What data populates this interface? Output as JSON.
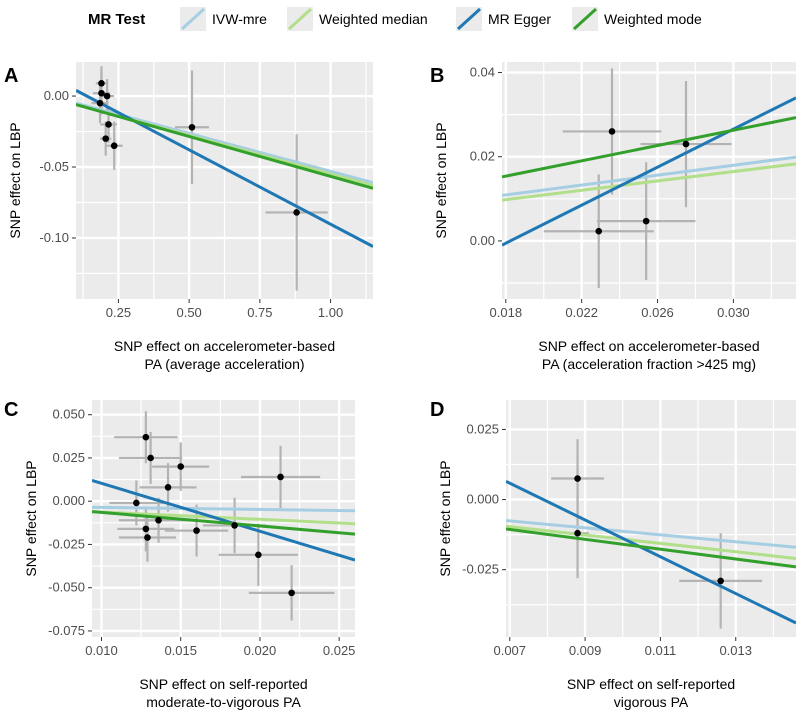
{
  "legend": {
    "title": "MR Test",
    "items": [
      {
        "label": "IVW-mre",
        "color": "#a6cee3"
      },
      {
        "label": "Weighted median",
        "color": "#b2df8a"
      },
      {
        "label": "MR Egger",
        "color": "#1f78b4"
      },
      {
        "label": "Weighted mode",
        "color": "#33a02c"
      }
    ]
  },
  "colors": {
    "panel_bg": "#ebebeb",
    "grid": "#ffffff",
    "errorbar": "#b3b3b3",
    "point": "#000000"
  },
  "chart_data": [
    {
      "panel": "A",
      "type": "scatter",
      "xlabel": [
        "SNP effect on accelerometer-based",
        "PA (average acceleration)"
      ],
      "ylabel": "SNP effect on LBP",
      "xlim": [
        0.1,
        1.15
      ],
      "ylim": [
        -0.143,
        0.024
      ],
      "xticks": [
        0.25,
        0.5,
        0.75,
        1.0
      ],
      "xtick_labels": [
        "0.25",
        "0.50",
        "0.75",
        "1.00"
      ],
      "yticks": [
        0.0,
        -0.05,
        -0.1
      ],
      "ytick_labels": [
        "0.00",
        "-0.05",
        "-0.10"
      ],
      "points": [
        {
          "x": 0.19,
          "y": 0.009,
          "xerr": 0.02,
          "yerr": 0.012
        },
        {
          "x": 0.19,
          "y": 0.002,
          "xerr": 0.03,
          "yerr": 0.015
        },
        {
          "x": 0.185,
          "y": -0.005,
          "xerr": 0.03,
          "yerr": 0.014
        },
        {
          "x": 0.21,
          "y": 0.0,
          "xerr": 0.025,
          "yerr": 0.012
        },
        {
          "x": 0.215,
          "y": -0.02,
          "xerr": 0.03,
          "yerr": 0.013
        },
        {
          "x": 0.205,
          "y": -0.03,
          "xerr": 0.02,
          "yerr": 0.012
        },
        {
          "x": 0.235,
          "y": -0.035,
          "xerr": 0.03,
          "yerr": 0.017
        },
        {
          "x": 0.51,
          "y": -0.022,
          "xerr": 0.06,
          "yerr": 0.04
        },
        {
          "x": 0.88,
          "y": -0.082,
          "xerr": 0.11,
          "yerr": 0.055
        }
      ],
      "lines": [
        {
          "method": "IVW-mre",
          "x": [
            0.1,
            1.15
          ],
          "y": [
            -0.005,
            -0.061
          ]
        },
        {
          "method": "Weighted median",
          "x": [
            0.1,
            1.15
          ],
          "y": [
            -0.006,
            -0.063
          ]
        },
        {
          "method": "MR Egger",
          "x": [
            0.1,
            1.15
          ],
          "y": [
            0.004,
            -0.106
          ]
        },
        {
          "method": "Weighted mode",
          "x": [
            0.1,
            1.15
          ],
          "y": [
            -0.006,
            -0.065
          ]
        }
      ]
    },
    {
      "panel": "B",
      "type": "scatter",
      "xlabel": [
        "SNP effect on accelerometer-based",
        "PA (acceleration fraction >425 mg)"
      ],
      "ylabel": "SNP effect on LBP",
      "xlim": [
        0.0178,
        0.0333
      ],
      "ylim": [
        -0.0138,
        0.0425
      ],
      "xticks": [
        0.018,
        0.022,
        0.026,
        0.03
      ],
      "xtick_labels": [
        "0.018",
        "0.022",
        "0.026",
        "0.030"
      ],
      "yticks": [
        0.04,
        0.02,
        0.0
      ],
      "ytick_labels": [
        "0.04",
        "0.02",
        "0.00"
      ],
      "points": [
        {
          "x": 0.0236,
          "y": 0.026,
          "xerr": 0.0026,
          "yerr": 0.015
        },
        {
          "x": 0.0275,
          "y": 0.023,
          "xerr": 0.0024,
          "yerr": 0.015
        },
        {
          "x": 0.0254,
          "y": 0.0047,
          "xerr": 0.0026,
          "yerr": 0.014
        },
        {
          "x": 0.0229,
          "y": 0.0023,
          "xerr": 0.0029,
          "yerr": 0.0135
        }
      ],
      "lines": [
        {
          "method": "IVW-mre",
          "x": [
            0.0178,
            0.0333
          ],
          "y": [
            0.0108,
            0.0199
          ]
        },
        {
          "method": "Weighted median",
          "x": [
            0.0178,
            0.0333
          ],
          "y": [
            0.0097,
            0.0183
          ]
        },
        {
          "method": "MR Egger",
          "x": [
            0.0178,
            0.0333
          ],
          "y": [
            -0.001,
            0.034
          ]
        },
        {
          "method": "Weighted mode",
          "x": [
            0.0178,
            0.0333
          ],
          "y": [
            0.0152,
            0.0293
          ]
        }
      ]
    },
    {
      "panel": "C",
      "type": "scatter",
      "xlabel": [
        "SNP effect on self-reported",
        "moderate-to-vigorous PA"
      ],
      "ylabel": "SNP effect on LBP",
      "xlim": [
        0.0094,
        0.026
      ],
      "ylim": [
        -0.0785,
        0.0585
      ],
      "xticks": [
        0.01,
        0.015,
        0.02,
        0.025
      ],
      "xtick_labels": [
        "0.010",
        "0.015",
        "0.020",
        "0.025"
      ],
      "yticks": [
        0.05,
        0.025,
        0.0,
        -0.025,
        -0.05,
        -0.075
      ],
      "ytick_labels": [
        "0.050",
        "0.025",
        "0.000",
        "-0.025",
        "-0.050",
        "-0.075"
      ],
      "points": [
        {
          "x": 0.0128,
          "y": 0.037,
          "xerr": 0.002,
          "yerr": 0.015
        },
        {
          "x": 0.0131,
          "y": 0.025,
          "xerr": 0.002,
          "yerr": 0.015
        },
        {
          "x": 0.015,
          "y": 0.02,
          "xerr": 0.0018,
          "yerr": 0.014
        },
        {
          "x": 0.0142,
          "y": 0.008,
          "xerr": 0.0018,
          "yerr": 0.014
        },
        {
          "x": 0.0213,
          "y": 0.014,
          "xerr": 0.0025,
          "yerr": 0.018
        },
        {
          "x": 0.0122,
          "y": -0.001,
          "xerr": 0.0017,
          "yerr": 0.013
        },
        {
          "x": 0.0136,
          "y": -0.011,
          "xerr": 0.0025,
          "yerr": 0.013
        },
        {
          "x": 0.0128,
          "y": -0.016,
          "xerr": 0.0018,
          "yerr": 0.013
        },
        {
          "x": 0.0129,
          "y": -0.021,
          "xerr": 0.0018,
          "yerr": 0.014
        },
        {
          "x": 0.016,
          "y": -0.017,
          "xerr": 0.002,
          "yerr": 0.015
        },
        {
          "x": 0.0184,
          "y": -0.014,
          "xerr": 0.002,
          "yerr": 0.016
        },
        {
          "x": 0.0199,
          "y": -0.031,
          "xerr": 0.0025,
          "yerr": 0.018
        },
        {
          "x": 0.022,
          "y": -0.053,
          "xerr": 0.0027,
          "yerr": 0.016
        }
      ],
      "lines": [
        {
          "method": "IVW-mre",
          "x": [
            0.0094,
            0.026
          ],
          "y": [
            -0.0035,
            -0.0055
          ]
        },
        {
          "method": "Weighted median",
          "x": [
            0.0094,
            0.026
          ],
          "y": [
            -0.006,
            -0.013
          ]
        },
        {
          "method": "MR Egger",
          "x": [
            0.0094,
            0.026
          ],
          "y": [
            0.012,
            -0.034
          ]
        },
        {
          "method": "Weighted mode",
          "x": [
            0.0094,
            0.026
          ],
          "y": [
            -0.006,
            -0.019
          ]
        }
      ]
    },
    {
      "panel": "D",
      "type": "scatter",
      "xlabel": [
        "SNP effect on self-reported",
        "vigorous PA"
      ],
      "ylabel": "SNP effect on LBP",
      "xlim": [
        0.0069,
        0.0146
      ],
      "ylim": [
        -0.049,
        0.0355
      ],
      "xticks": [
        0.007,
        0.009,
        0.011,
        0.013
      ],
      "xtick_labels": [
        "0.007",
        "0.009",
        "0.011",
        "0.013"
      ],
      "yticks": [
        0.025,
        0.0,
        -0.025
      ],
      "ytick_labels": [
        "0.025",
        "0.000",
        "-0.025"
      ],
      "points": [
        {
          "x": 0.0088,
          "y": 0.0075,
          "xerr": 0.0007,
          "yerr": 0.014
        },
        {
          "x": 0.0088,
          "y": -0.012,
          "xerr": 0.0003,
          "yerr": 0.016
        },
        {
          "x": 0.0126,
          "y": -0.029,
          "xerr": 0.0011,
          "yerr": 0.017
        }
      ],
      "lines": [
        {
          "method": "IVW-mre",
          "x": [
            0.0069,
            0.0146
          ],
          "y": [
            -0.0075,
            -0.017
          ]
        },
        {
          "method": "Weighted median",
          "x": [
            0.0069,
            0.0146
          ],
          "y": [
            -0.0095,
            -0.021
          ]
        },
        {
          "method": "MR Egger",
          "x": [
            0.0069,
            0.0146
          ],
          "y": [
            0.0065,
            -0.044
          ]
        },
        {
          "method": "Weighted mode",
          "x": [
            0.0069,
            0.0146
          ],
          "y": [
            -0.0105,
            -0.024
          ]
        }
      ]
    }
  ]
}
